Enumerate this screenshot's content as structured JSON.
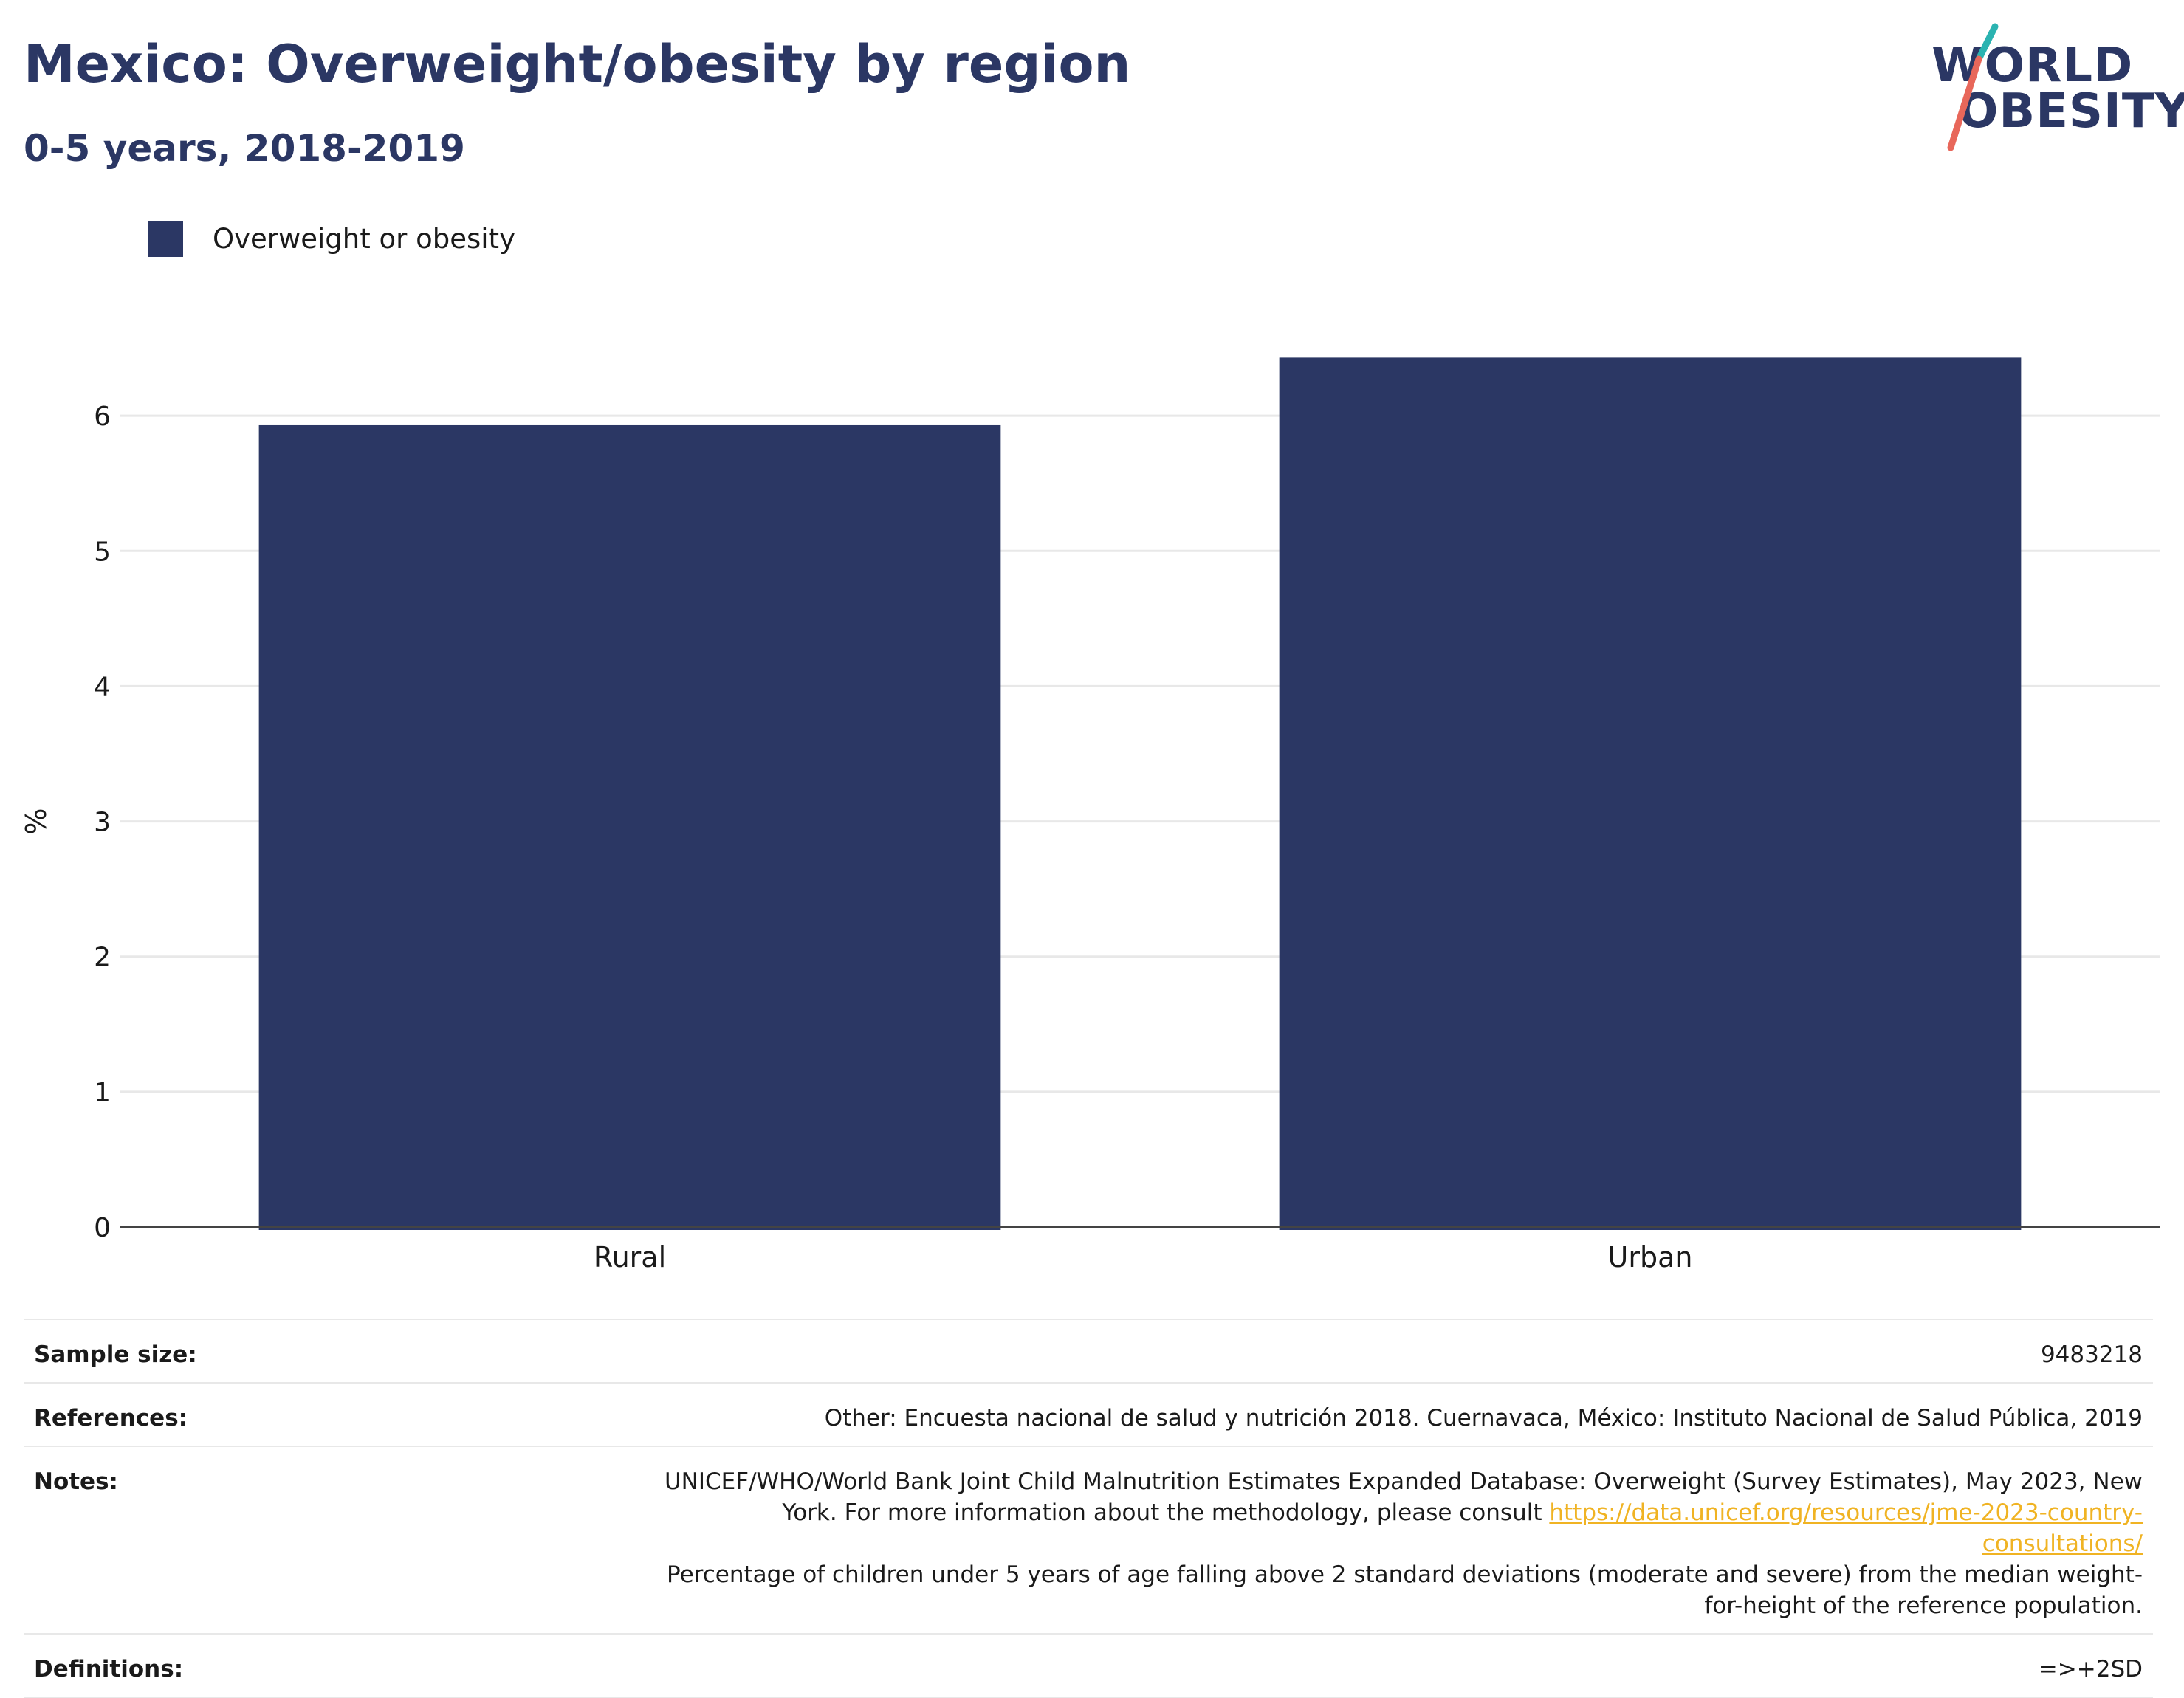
{
  "header": {
    "title": "Mexico: Overweight/obesity by region",
    "subtitle": "0-5 years, 2018-2019"
  },
  "logo": {
    "line1": "WORLD",
    "line2": "OBESITY",
    "colors": {
      "navy": "#2b3764",
      "teal": "#2bb3b1",
      "coral": "#e8675a"
    }
  },
  "chart_data": {
    "type": "bar",
    "categories": [
      "Rural",
      "Urban"
    ],
    "series": [
      {
        "name": "Overweight or obesity",
        "values": [
          5.93,
          6.43
        ],
        "color": "#2b3764"
      }
    ],
    "ylabel": "%",
    "xlabel": "",
    "ylim": [
      0,
      7
    ],
    "yticks": [
      0,
      1,
      2,
      3,
      4,
      5,
      6
    ],
    "grid": true,
    "legend_position": "top-left"
  },
  "meta": {
    "sample_size_label": "Sample size:",
    "sample_size_value": "9483218",
    "references_label": "References:",
    "references_value": "Other: Encuesta nacional de salud y nutrición 2018. Cuernavaca, México: Instituto Nacional de Salud Pública, 2019",
    "notes_label": "Notes:",
    "notes_value_1": "UNICEF/WHO/World Bank Joint Child Malnutrition Estimates Expanded Database: Overweight (Survey Estimates), May 2023, New York. For more information about the methodology, please consult ",
    "notes_link": "https://data.unicef.org/resources/jme-2023-country-consultations/",
    "notes_value_2": "Percentage of children under 5 years of age falling above 2 standard deviations (moderate and severe) from the median weight-for-height of the reference population.",
    "definitions_label": "Definitions:",
    "definitions_value": "=>+2SD"
  }
}
